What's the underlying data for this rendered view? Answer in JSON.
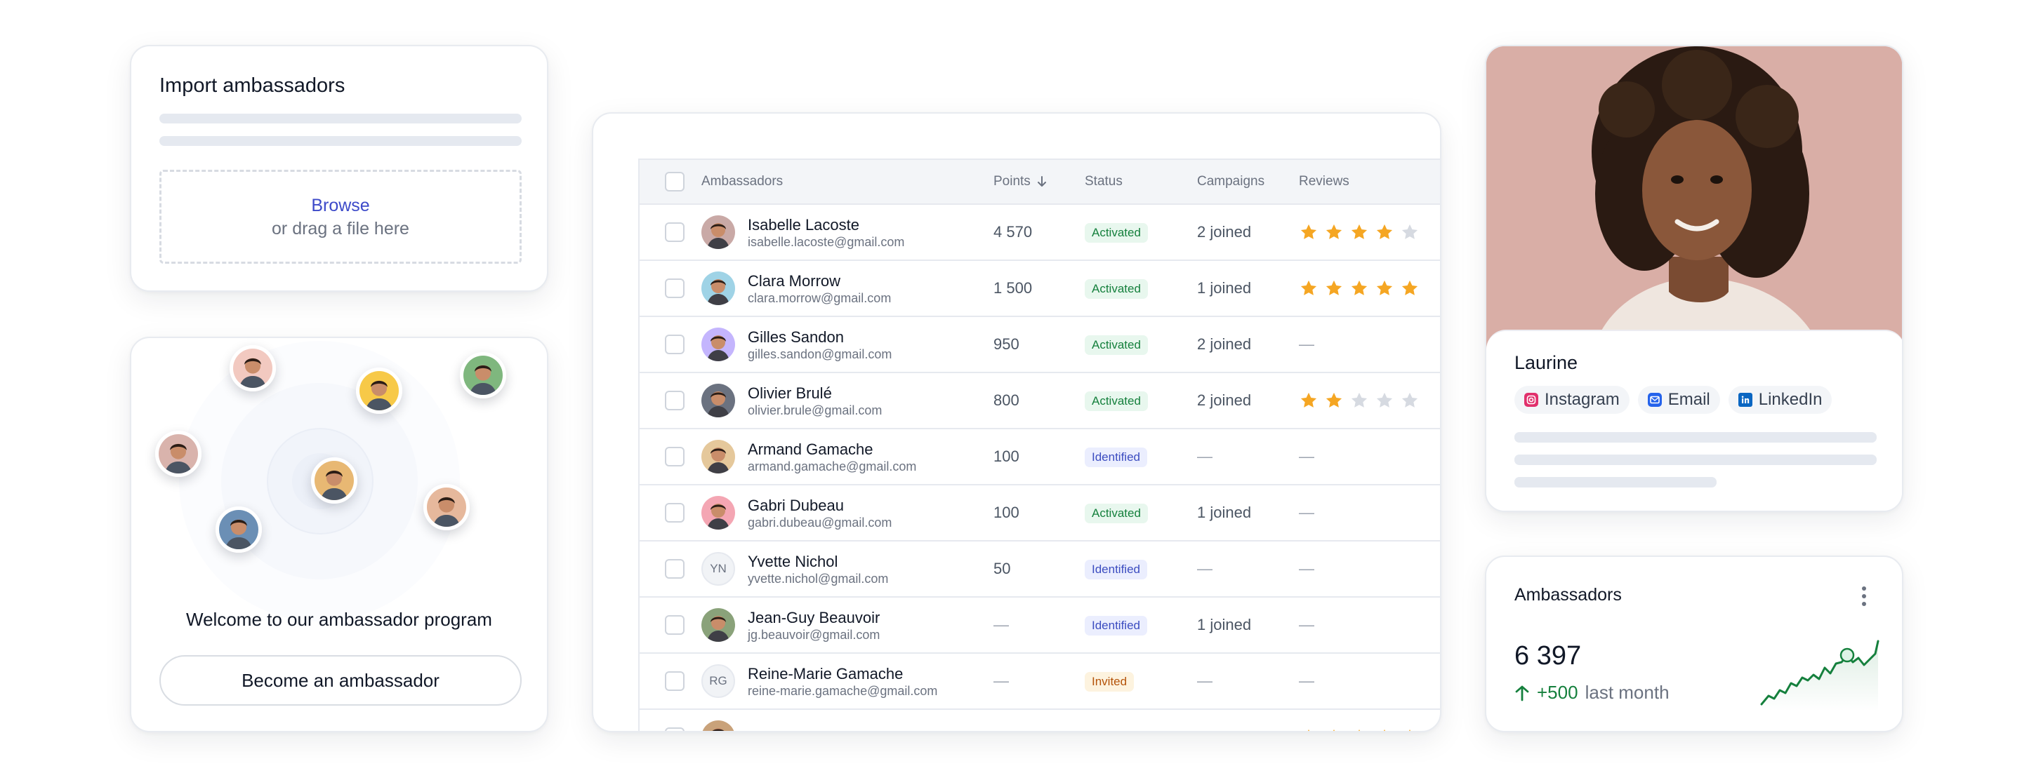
{
  "import_card": {
    "title": "Import ambassadors",
    "browse_label": "Browse",
    "drag_label": "or drag a file here"
  },
  "welcome_card": {
    "text": "Welcome to our ambassador program",
    "button_label": "Become an ambassador"
  },
  "table": {
    "columns": {
      "ambassadors": "Ambassadors",
      "points": "Points",
      "status": "Status",
      "campaigns": "Campaigns",
      "reviews": "Reviews"
    },
    "sort_column": "points",
    "sort_icon": "arrow-down-icon",
    "rows": [
      {
        "name": "Isabelle Lacoste",
        "email": "isabelle.lacoste@gmail.com",
        "points": "4 570",
        "status": "Activated",
        "campaigns": "2 joined",
        "reviews": "★★★★☆",
        "avatar_bg": "#c9a9a6"
      },
      {
        "name": "Clara Morrow",
        "email": "clara.morrow@gmail.com",
        "points": "1 500",
        "status": "Activated",
        "campaigns": "1 joined",
        "reviews": "★★★★★",
        "avatar_bg": "#9fd3e6"
      },
      {
        "name": "Gilles Sandon",
        "email": "gilles.sandon@gmail.com",
        "points": "950",
        "status": "Activated",
        "campaigns": "2 joined",
        "reviews": "—",
        "avatar_bg": "#c4b5fd"
      },
      {
        "name": "Olivier Brulé",
        "email": "olivier.brule@gmail.com",
        "points": "800",
        "status": "Activated",
        "campaigns": "2 joined",
        "reviews": "★★☆☆☆",
        "avatar_bg": "#6b7280"
      },
      {
        "name": "Armand Gamache",
        "email": "armand.gamache@gmail.com",
        "points": "100",
        "status": "Identified",
        "campaigns": "—",
        "reviews": "—",
        "avatar_bg": "#e5c89b"
      },
      {
        "name": "Gabri Dubeau",
        "email": "gabri.dubeau@gmail.com",
        "points": "100",
        "status": "Activated",
        "campaigns": "1 joined",
        "reviews": "—",
        "avatar_bg": "#f4a6b3"
      },
      {
        "name": "Yvette Nichol",
        "email": "yvette.nichol@gmail.com",
        "points": "50",
        "status": "Identified",
        "campaigns": "—",
        "reviews": "—",
        "initials": "YN"
      },
      {
        "name": "Jean-Guy Beauvoir",
        "email": "jg.beauvoir@gmail.com",
        "points": "—",
        "status": "Identified",
        "campaigns": "1 joined",
        "reviews": "—",
        "avatar_bg": "#8aa27a"
      },
      {
        "name": "Reine-Marie Gamache",
        "email": "reine-marie.gamache@gmail.com",
        "points": "—",
        "status": "Invited",
        "campaigns": "—",
        "reviews": "—",
        "initials": "RG"
      },
      {
        "name": "Peter Morrow",
        "email": "",
        "points": "",
        "status": "",
        "campaigns": "",
        "reviews": "★★★★★",
        "avatar_bg": "#c9a27a"
      }
    ]
  },
  "profile_card": {
    "name": "Laurine",
    "socials": [
      {
        "label": "Instagram",
        "icon": "instagram-icon",
        "color": "#e1306c"
      },
      {
        "label": "Email",
        "icon": "email-icon",
        "color": "#2563eb"
      },
      {
        "label": "LinkedIn",
        "icon": "linkedin-icon",
        "color": "#0a66c2"
      }
    ]
  },
  "stats_card": {
    "title": "Ambassadors",
    "value": "6 397",
    "delta": "+500",
    "delta_label": "last month",
    "menu_icon": "more-vertical-icon",
    "accent": "#15803d"
  },
  "colors": {
    "activated_bg": "#e8f7ee",
    "activated_fg": "#15803d",
    "identified_bg": "#ebeefe",
    "identified_fg": "#3b4cc0",
    "invited_bg": "#fdf3df",
    "invited_fg": "#b45309",
    "star_on": "#f5a623",
    "star_off": "#d6dae1",
    "link": "#3d4ac9"
  }
}
